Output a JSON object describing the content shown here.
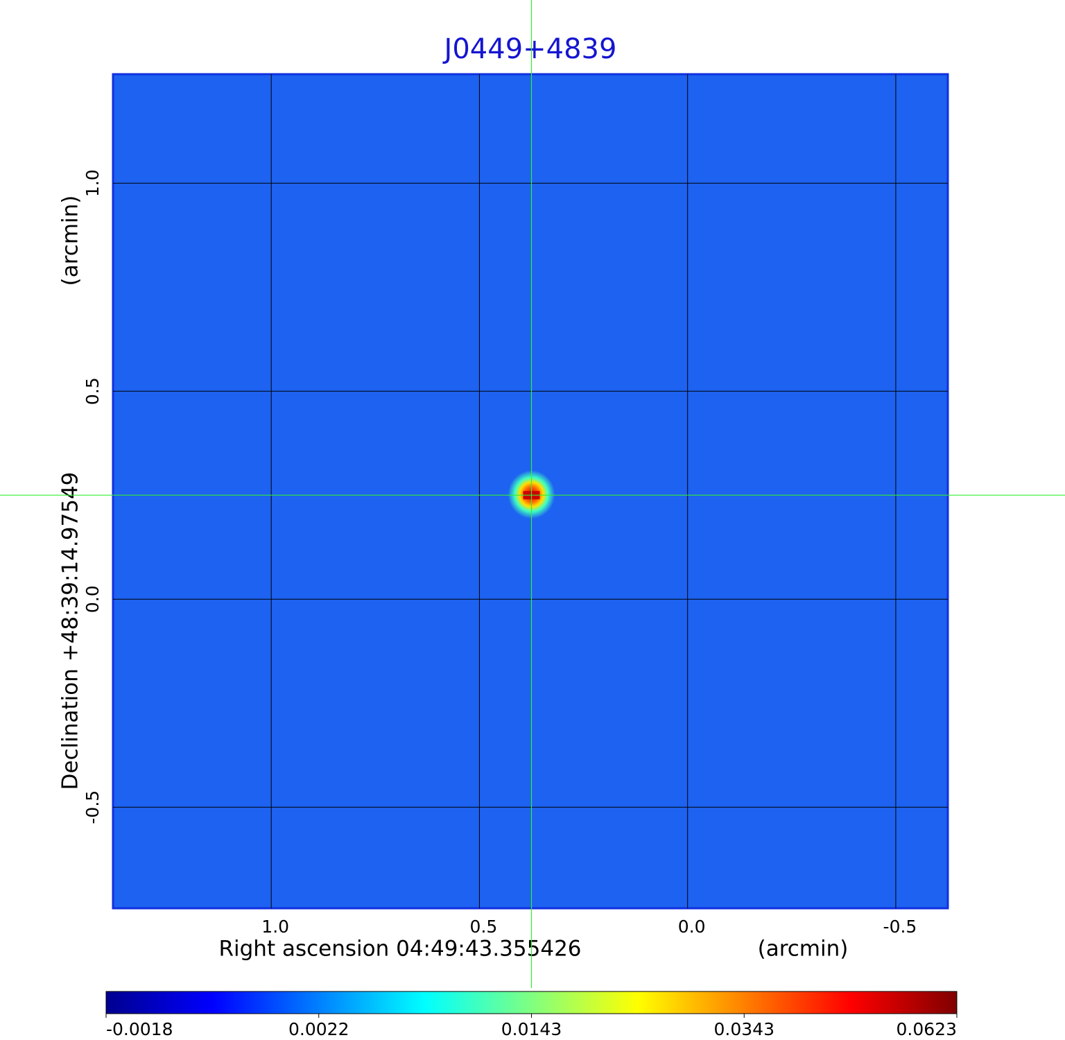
{
  "chart_data": {
    "type": "image",
    "title": "J0449+4839",
    "xlabel": "Right ascension  04:49:43.355426",
    "xunit": "(arcmin)",
    "ylabel": "Declination  +48:39:14.97549",
    "yunit": "(arcmin)",
    "xlim": [
      1.38,
      -0.625
    ],
    "ylim": [
      -0.743,
      1.262
    ],
    "xticks": [
      {
        "value": 1,
        "label": "1.0"
      },
      {
        "value": 0.5,
        "label": "0.5"
      },
      {
        "value": 0,
        "label": "0.0"
      },
      {
        "value": -0.5,
        "label": "-0.5"
      }
    ],
    "yticks": [
      {
        "value": 1,
        "label": "1.0"
      },
      {
        "value": 0.5,
        "label": "0.5"
      },
      {
        "value": 0,
        "label": "0.0"
      },
      {
        "value": -0.5,
        "label": "-0.5"
      }
    ],
    "grid": true,
    "crosshair": {
      "x": 0.375,
      "y": 0.25,
      "color": "#33ee33"
    },
    "source": {
      "x": 0.375,
      "y": 0.25,
      "peak": 0.0623
    },
    "background_color": "#1d62f0",
    "colorbar": {
      "lim": [
        -0.0018,
        0.0623
      ],
      "ticks": [
        -0.0018,
        0.0022,
        0.0143,
        0.0343,
        0.0623
      ],
      "colors": [
        "#00008f",
        "#0000ff",
        "#0080ff",
        "#00ffff",
        "#80ff80",
        "#ffff00",
        "#ff8000",
        "#ff0000",
        "#800000"
      ]
    }
  }
}
